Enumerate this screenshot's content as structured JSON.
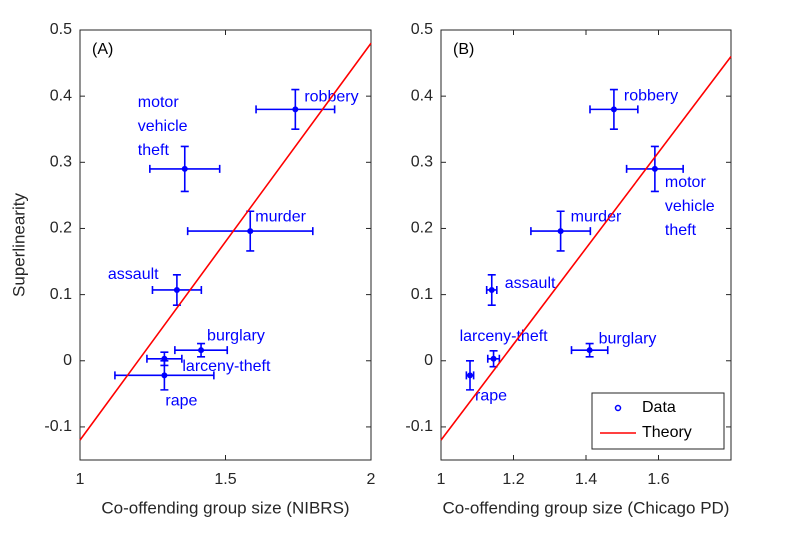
{
  "chart_data": [
    {
      "type": "scatter",
      "panel_label": "(A)",
      "xlabel": "Co-offending group size (NIBRS)",
      "ylabel": "Superlinearity",
      "xlim": [
        1,
        2
      ],
      "ylim": [
        -0.15,
        0.5
      ],
      "xticks": [
        1,
        1.5,
        2
      ],
      "yticks": [
        -0.1,
        0,
        0.1,
        0.2,
        0.3,
        0.4,
        0.5
      ],
      "series": [
        {
          "color": "#0000ff",
          "labels": [
            "robbery",
            "motor vehicle theft",
            "murder",
            "assault",
            "burglary",
            "larceny-theft",
            "rape"
          ],
          "x": [
            1.74,
            1.36,
            1.585,
            1.333,
            1.416,
            1.29,
            1.29
          ],
          "values": [
            0.38,
            0.29,
            0.196,
            0.107,
            0.016,
            0.003,
            -0.022
          ],
          "xerr": [
            0.135,
            0.12,
            0.215,
            0.084,
            0.09,
            0.06,
            0.17
          ],
          "yerr": [
            0.03,
            0.034,
            0.03,
            0.023,
            0.01,
            0.01,
            0.022
          ]
        },
        {
          "color": "#ff0000",
          "x": [
            1,
            2
          ],
          "values": [
            -0.12,
            0.48
          ]
        }
      ]
    },
    {
      "type": "scatter",
      "panel_label": "(B)",
      "xlabel": "Co-offending group size (Chicago PD)",
      "xlim": [
        1,
        1.8
      ],
      "ylim": [
        -0.15,
        0.5
      ],
      "xticks": [
        1,
        1.2,
        1.4,
        1.6
      ],
      "yticks": [
        -0.1,
        0,
        0.1,
        0.2,
        0.3,
        0.4,
        0.5
      ],
      "legend": "lower right",
      "series": [
        {
          "name": "Data",
          "color": "#0000ff",
          "labels": [
            "robbery",
            "motor vehicle theft",
            "murder",
            "assault",
            "burglary",
            "larceny-theft",
            "rape"
          ],
          "x": [
            1.477,
            1.59,
            1.33,
            1.14,
            1.41,
            1.145,
            1.08
          ],
          "values": [
            0.38,
            0.29,
            0.196,
            0.107,
            0.016,
            0.003,
            -0.022
          ],
          "xerr": [
            0.066,
            0.078,
            0.082,
            0.014,
            0.05,
            0.016,
            0.01
          ],
          "yerr": [
            0.03,
            0.034,
            0.03,
            0.023,
            0.01,
            0.012,
            0.022
          ]
        },
        {
          "name": "Theory",
          "color": "#ff0000",
          "x": [
            1,
            1.8
          ],
          "values": [
            -0.12,
            0.46
          ]
        }
      ]
    }
  ]
}
